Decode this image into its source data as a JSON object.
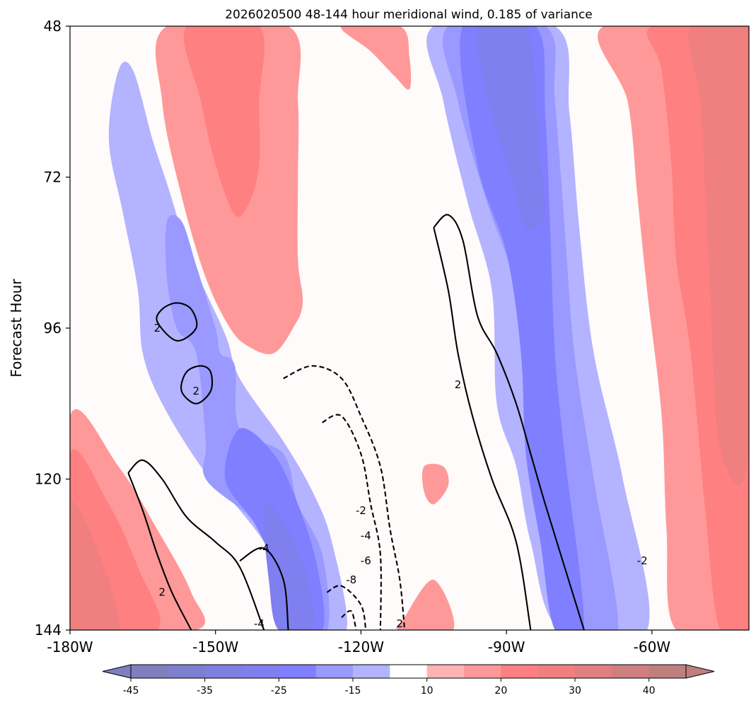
{
  "chart_data": {
    "type": "heatmap",
    "title": "2026020500 48-144 hour meridional wind, 0.185 of variance",
    "xlabel": "",
    "ylabel": "Forecast Hour",
    "x_ticks": [
      "-180W",
      "-150W",
      "-120W",
      "-90W",
      "-60W"
    ],
    "x_tick_values": [
      -180,
      -150,
      -120,
      -90,
      -60
    ],
    "xlim": [
      -180,
      -40
    ],
    "y_ticks": [
      "48",
      "72",
      "96",
      "120",
      "144"
    ],
    "y_tick_values": [
      48,
      72,
      96,
      120,
      144
    ],
    "ylim": [
      48,
      144
    ],
    "y_inverted": true,
    "colorbar": {
      "orientation": "horizontal",
      "extend": "both",
      "levels": [
        -45,
        -40,
        -35,
        -30,
        -25,
        -20,
        -15,
        -10,
        10,
        15,
        20,
        25,
        30,
        35,
        40,
        45
      ],
      "tick_labels": [
        "-45",
        "-35",
        "-25",
        "-15",
        "10",
        "20",
        "30",
        "40"
      ],
      "tick_values": [
        -45,
        -35,
        -25,
        -15,
        10,
        20,
        30,
        40
      ],
      "colors": [
        "#7f7fbf",
        "#7f7fcf",
        "#7f7fe0",
        "#7f7ff0",
        "#7f7fff",
        "#9999ff",
        "#b3b3ff",
        "#ffffff",
        "#ffb3b3",
        "#ff9999",
        "#ff8080",
        "#f07f7f",
        "#e07f7f",
        "#cf7f7f",
        "#bf7f7f"
      ]
    },
    "fill_regions": [
      {
        "level": 15,
        "polygon": [
          [
            -160,
            48
          ],
          [
            -135,
            48
          ],
          [
            -133,
            60
          ],
          [
            -133,
            72
          ],
          [
            -133,
            85
          ],
          [
            -132,
            92
          ],
          [
            -134,
            96
          ],
          [
            -138,
            100
          ],
          [
            -143,
            99
          ],
          [
            -147,
            96
          ],
          [
            -152,
            88
          ],
          [
            -157,
            75
          ],
          [
            -161,
            60
          ]
        ]
      },
      {
        "level": 20,
        "polygon": [
          [
            -156,
            48
          ],
          [
            -141,
            48
          ],
          [
            -141,
            60
          ],
          [
            -141,
            70
          ],
          [
            -143,
            76
          ],
          [
            -146,
            78
          ],
          [
            -150,
            70
          ],
          [
            -153,
            60
          ]
        ]
      },
      {
        "level": 15,
        "polygon": [
          [
            -124,
            48
          ],
          [
            -112,
            48
          ],
          [
            -110,
            53
          ],
          [
            -110,
            58
          ],
          [
            -113,
            56
          ],
          [
            -118,
            52
          ]
        ]
      },
      {
        "level": -15,
        "polygon": [
          [
            -170,
            55
          ],
          [
            -167,
            55
          ],
          [
            -163,
            66
          ],
          [
            -160,
            73
          ],
          [
            -155,
            85
          ],
          [
            -148,
            97
          ],
          [
            -145,
            104
          ],
          [
            -136,
            114
          ],
          [
            -130,
            122
          ],
          [
            -126,
            130
          ],
          [
            -123,
            144
          ],
          [
            -131,
            144
          ],
          [
            -136,
            136
          ],
          [
            -140,
            130
          ],
          [
            -146,
            124
          ],
          [
            -153,
            118
          ],
          [
            -161,
            108
          ],
          [
            -165,
            100
          ],
          [
            -166,
            90
          ],
          [
            -169,
            78
          ],
          [
            -172,
            66
          ]
        ]
      },
      {
        "level": -20,
        "polygon": [
          [
            -160,
            79
          ],
          [
            -157,
            79
          ],
          [
            -154,
            86
          ],
          [
            -150,
            96
          ],
          [
            -149,
            100
          ],
          [
            -146,
            102
          ],
          [
            -145,
            112
          ],
          [
            -136,
            116
          ],
          [
            -133,
            124
          ],
          [
            -128,
            132
          ],
          [
            -127,
            144
          ],
          [
            -135,
            144
          ],
          [
            -138,
            132
          ],
          [
            -143,
            126
          ],
          [
            -152,
            120
          ],
          [
            -152,
            114
          ],
          [
            -154,
            100
          ],
          [
            -158,
            96
          ],
          [
            -160,
            88
          ]
        ]
      },
      {
        "level": -25,
        "polygon": [
          [
            -145,
            112
          ],
          [
            -138,
            116
          ],
          [
            -133,
            124
          ],
          [
            -129,
            134
          ],
          [
            -128,
            144
          ],
          [
            -136,
            144
          ],
          [
            -138,
            134
          ],
          [
            -142,
            127
          ],
          [
            -148,
            120
          ]
        ]
      },
      {
        "level": -30,
        "polygon": [
          [
            -140,
            124
          ],
          [
            -135,
            128
          ],
          [
            -131,
            136
          ],
          [
            -130,
            144
          ],
          [
            -137,
            144
          ],
          [
            -139,
            136
          ]
        ]
      },
      {
        "level": -15,
        "polygon": [
          [
            -105,
            48
          ],
          [
            -80,
            48
          ],
          [
            -77,
            62
          ],
          [
            -75,
            80
          ],
          [
            -72,
            100
          ],
          [
            -66,
            120
          ],
          [
            -61,
            144
          ],
          [
            -79,
            144
          ],
          [
            -85,
            130
          ],
          [
            -88,
            118
          ],
          [
            -92,
            108
          ],
          [
            -93,
            90
          ],
          [
            -98,
            76
          ],
          [
            -103,
            60
          ]
        ]
      },
      {
        "level": -20,
        "polygon": [
          [
            -102,
            48
          ],
          [
            -82,
            48
          ],
          [
            -80,
            60
          ],
          [
            -78,
            80
          ],
          [
            -76,
            100
          ],
          [
            -72,
            120
          ],
          [
            -67,
            144
          ],
          [
            -75,
            144
          ],
          [
            -80,
            130
          ],
          [
            -83,
            118
          ],
          [
            -86,
            108
          ],
          [
            -88,
            90
          ],
          [
            -94,
            76
          ],
          [
            -100,
            60
          ]
        ]
      },
      {
        "level": -25,
        "polygon": [
          [
            -99,
            48
          ],
          [
            -84,
            48
          ],
          [
            -82,
            62
          ],
          [
            -81,
            80
          ],
          [
            -80,
            100
          ],
          [
            -78,
            116
          ],
          [
            -74,
            144
          ],
          [
            -80,
            144
          ],
          [
            -83,
            130
          ],
          [
            -86,
            116
          ],
          [
            -87,
            100
          ],
          [
            -90,
            84
          ],
          [
            -96,
            70
          ]
        ]
      },
      {
        "level": -30,
        "polygon": [
          [
            -96,
            48
          ],
          [
            -86,
            48
          ],
          [
            -84,
            60
          ],
          [
            -83,
            70
          ],
          [
            -82,
            78
          ],
          [
            -86,
            80
          ],
          [
            -89,
            72
          ],
          [
            -93,
            62
          ]
        ]
      },
      {
        "level": 15,
        "polygon": [
          [
            -70,
            48
          ],
          [
            -40,
            48
          ],
          [
            -40,
            144
          ],
          [
            -55,
            144
          ],
          [
            -57,
            128
          ],
          [
            -58,
            110
          ],
          [
            -61,
            90
          ],
          [
            -63,
            75
          ],
          [
            -65,
            60
          ]
        ]
      },
      {
        "level": 20,
        "polygon": [
          [
            -60,
            48
          ],
          [
            -40,
            48
          ],
          [
            -40,
            144
          ],
          [
            -46,
            144
          ],
          [
            -49,
            125
          ],
          [
            -52,
            100
          ],
          [
            -55,
            85
          ],
          [
            -56,
            70
          ],
          [
            -58,
            55
          ]
        ]
      },
      {
        "level": 25,
        "polygon": [
          [
            -52,
            48
          ],
          [
            -40,
            48
          ],
          [
            -40,
            115
          ],
          [
            -46,
            115
          ],
          [
            -48,
            90
          ],
          [
            -49,
            75
          ],
          [
            -50,
            60
          ]
        ]
      },
      {
        "level": 15,
        "polygon": [
          [
            -180,
            110
          ],
          [
            -170,
            118
          ],
          [
            -162,
            128
          ],
          [
            -155,
            138
          ],
          [
            -154,
            144
          ],
          [
            -180,
            144
          ]
        ]
      },
      {
        "level": 20,
        "polygon": [
          [
            -180,
            116
          ],
          [
            -172,
            124
          ],
          [
            -166,
            134
          ],
          [
            -162,
            144
          ],
          [
            -180,
            144
          ]
        ]
      },
      {
        "level": 25,
        "polygon": [
          [
            -180,
            124
          ],
          [
            -174,
            132
          ],
          [
            -170,
            144
          ],
          [
            -180,
            144
          ]
        ]
      },
      {
        "level": 15,
        "polygon": [
          [
            -111,
            142
          ],
          [
            -105,
            136
          ],
          [
            -101,
            144
          ],
          [
            -112,
            144
          ]
        ]
      },
      {
        "level": 15,
        "polygon": [
          [
            -107,
            118
          ],
          [
            -103,
            118
          ],
          [
            -102,
            121
          ],
          [
            -105,
            124
          ],
          [
            -107,
            122
          ]
        ]
      }
    ],
    "contours": [
      {
        "value": 2,
        "style": "solid",
        "points": [
          [
            -162,
            95
          ],
          [
            -158,
            98
          ],
          [
            -154,
            96
          ],
          [
            -155,
            93
          ],
          [
            -158,
            92
          ],
          [
            -161,
            93
          ]
        ]
      },
      {
        "value": 2,
        "style": "solid",
        "points": [
          [
            -157,
            106
          ],
          [
            -154,
            108
          ],
          [
            -151,
            106
          ],
          [
            -151,
            103
          ],
          [
            -153,
            102
          ],
          [
            -156,
            103
          ]
        ]
      },
      {
        "value": 2,
        "style": "solid",
        "points": [
          [
            -168,
            119
          ],
          [
            -165,
            117
          ],
          [
            -161,
            120
          ],
          [
            -156,
            126
          ],
          [
            -150,
            130
          ],
          [
            -145,
            134
          ],
          [
            -140,
            144
          ]
        ]
      },
      {
        "value": 2,
        "style": "solid",
        "points": [
          [
            -168,
            119
          ],
          [
            -165,
            125
          ],
          [
            -162,
            132
          ],
          [
            -159,
            138
          ],
          [
            -155,
            144
          ]
        ]
      },
      {
        "value": 2,
        "style": "solid",
        "points": [
          [
            -105,
            80
          ],
          [
            -102,
            78
          ],
          [
            -99,
            82
          ],
          [
            -96,
            94
          ],
          [
            -92,
            100
          ],
          [
            -88,
            108
          ],
          [
            -85,
            116
          ],
          [
            -82,
            124
          ],
          [
            -78,
            134
          ],
          [
            -74,
            144
          ]
        ]
      },
      {
        "value": 2,
        "style": "solid",
        "points": [
          [
            -105,
            80
          ],
          [
            -102,
            90
          ],
          [
            -100,
            100
          ],
          [
            -97,
            110
          ],
          [
            -93,
            120
          ],
          [
            -88,
            130
          ],
          [
            -85,
            144
          ]
        ]
      },
      {
        "value": -4,
        "style": "solid",
        "points": [
          [
            -145,
            133
          ],
          [
            -140,
            131
          ],
          [
            -136,
            136
          ],
          [
            -135,
            144
          ]
        ]
      },
      {
        "value": -2,
        "style": "dashed",
        "points": [
          [
            -136,
            104
          ],
          [
            -130,
            102
          ],
          [
            -124,
            104
          ],
          [
            -120,
            110
          ],
          [
            -116,
            118
          ],
          [
            -114,
            128
          ],
          [
            -112,
            136
          ],
          [
            -111,
            144
          ]
        ]
      },
      {
        "value": -4,
        "style": "dashed",
        "points": [
          [
            -128,
            111
          ],
          [
            -124,
            110
          ],
          [
            -120,
            116
          ],
          [
            -118,
            124
          ],
          [
            -116,
            132
          ],
          [
            -116,
            144
          ]
        ]
      },
      {
        "value": -6,
        "style": "dashed",
        "points": [
          [
            -127,
            138
          ],
          [
            -124,
            137
          ],
          [
            -120,
            140
          ],
          [
            -119,
            144
          ]
        ]
      },
      {
        "value": -8,
        "style": "dashed",
        "points": [
          [
            -124,
            142
          ],
          [
            -122,
            141
          ],
          [
            -121,
            144
          ]
        ]
      }
    ],
    "contour_labels": [
      {
        "text": "2",
        "x": -162,
        "y": 96
      },
      {
        "text": "2",
        "x": -154,
        "y": 106
      },
      {
        "text": "2",
        "x": -161,
        "y": 138
      },
      {
        "text": "-4",
        "x": -140,
        "y": 131
      },
      {
        "text": "-4",
        "x": -141,
        "y": 143
      },
      {
        "text": "-2",
        "x": -120,
        "y": 125
      },
      {
        "text": "-4",
        "x": -119,
        "y": 129
      },
      {
        "text": "-6",
        "x": -119,
        "y": 133
      },
      {
        "text": "-8",
        "x": -122,
        "y": 136
      },
      {
        "text": "2",
        "x": -100,
        "y": 105
      },
      {
        "text": "2",
        "x": -112,
        "y": 143
      },
      {
        "text": "-2",
        "x": -62,
        "y": 133
      }
    ]
  }
}
